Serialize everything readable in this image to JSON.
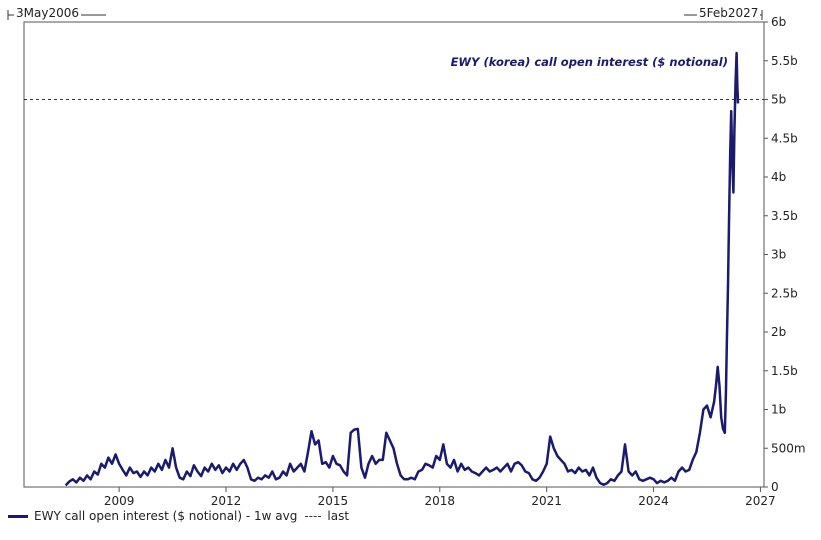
{
  "chart_data": {
    "type": "line",
    "range_start_label": "3May2006",
    "range_end_label": "5Feb2027",
    "annotation": "EWY (korea) call open interest ($ notional)",
    "x_ticks": [
      "2009",
      "2012",
      "2015",
      "2018",
      "2021",
      "2024",
      "2027"
    ],
    "x_tick_values": [
      2009,
      2012,
      2015,
      2018,
      2021,
      2024,
      2027
    ],
    "xlim": [
      2006.33,
      2027.1
    ],
    "y_ticks": [
      "0",
      "500m",
      "1b",
      "1.5b",
      "2b",
      "2.5b",
      "3b",
      "3.5b",
      "4b",
      "4.5b",
      "5b",
      "5.5b",
      "6b"
    ],
    "y_tick_values": [
      0,
      0.5,
      1,
      1.5,
      2,
      2.5,
      3,
      3.5,
      4,
      4.5,
      5,
      5.5,
      6
    ],
    "ylim": [
      0,
      6
    ],
    "y_unit": "billions USD",
    "last_value": 5.0,
    "grid": false,
    "legend_position": "bottom-left",
    "series": [
      {
        "name": "EWY call open interest ($ notional) - 1w avg",
        "color": "#1a1a6e",
        "points": [
          [
            2007.5,
            0.02
          ],
          [
            2007.6,
            0.07
          ],
          [
            2007.7,
            0.1
          ],
          [
            2007.8,
            0.06
          ],
          [
            2007.9,
            0.12
          ],
          [
            2008.0,
            0.08
          ],
          [
            2008.1,
            0.15
          ],
          [
            2008.2,
            0.1
          ],
          [
            2008.3,
            0.2
          ],
          [
            2008.4,
            0.16
          ],
          [
            2008.5,
            0.3
          ],
          [
            2008.6,
            0.25
          ],
          [
            2008.7,
            0.38
          ],
          [
            2008.8,
            0.3
          ],
          [
            2008.9,
            0.42
          ],
          [
            2009.0,
            0.3
          ],
          [
            2009.1,
            0.22
          ],
          [
            2009.2,
            0.15
          ],
          [
            2009.3,
            0.25
          ],
          [
            2009.4,
            0.18
          ],
          [
            2009.5,
            0.2
          ],
          [
            2009.6,
            0.13
          ],
          [
            2009.7,
            0.2
          ],
          [
            2009.8,
            0.15
          ],
          [
            2009.9,
            0.25
          ],
          [
            2010.0,
            0.2
          ],
          [
            2010.1,
            0.3
          ],
          [
            2010.2,
            0.22
          ],
          [
            2010.3,
            0.35
          ],
          [
            2010.4,
            0.25
          ],
          [
            2010.5,
            0.5
          ],
          [
            2010.6,
            0.25
          ],
          [
            2010.7,
            0.12
          ],
          [
            2010.8,
            0.1
          ],
          [
            2010.9,
            0.2
          ],
          [
            2011.0,
            0.14
          ],
          [
            2011.1,
            0.28
          ],
          [
            2011.2,
            0.2
          ],
          [
            2011.3,
            0.14
          ],
          [
            2011.4,
            0.25
          ],
          [
            2011.5,
            0.2
          ],
          [
            2011.6,
            0.3
          ],
          [
            2011.7,
            0.22
          ],
          [
            2011.8,
            0.28
          ],
          [
            2011.9,
            0.18
          ],
          [
            2012.0,
            0.25
          ],
          [
            2012.1,
            0.2
          ],
          [
            2012.2,
            0.3
          ],
          [
            2012.3,
            0.22
          ],
          [
            2012.4,
            0.3
          ],
          [
            2012.5,
            0.35
          ],
          [
            2012.6,
            0.25
          ],
          [
            2012.7,
            0.1
          ],
          [
            2012.8,
            0.08
          ],
          [
            2012.9,
            0.12
          ],
          [
            2013.0,
            0.1
          ],
          [
            2013.1,
            0.15
          ],
          [
            2013.2,
            0.12
          ],
          [
            2013.3,
            0.2
          ],
          [
            2013.4,
            0.1
          ],
          [
            2013.5,
            0.12
          ],
          [
            2013.6,
            0.2
          ],
          [
            2013.7,
            0.15
          ],
          [
            2013.8,
            0.3
          ],
          [
            2013.9,
            0.2
          ],
          [
            2014.0,
            0.25
          ],
          [
            2014.1,
            0.3
          ],
          [
            2014.2,
            0.2
          ],
          [
            2014.3,
            0.45
          ],
          [
            2014.4,
            0.72
          ],
          [
            2014.5,
            0.55
          ],
          [
            2014.6,
            0.6
          ],
          [
            2014.7,
            0.3
          ],
          [
            2014.8,
            0.32
          ],
          [
            2014.9,
            0.25
          ],
          [
            2015.0,
            0.4
          ],
          [
            2015.1,
            0.3
          ],
          [
            2015.2,
            0.28
          ],
          [
            2015.3,
            0.2
          ],
          [
            2015.4,
            0.15
          ],
          [
            2015.5,
            0.7
          ],
          [
            2015.6,
            0.74
          ],
          [
            2015.7,
            0.75
          ],
          [
            2015.8,
            0.25
          ],
          [
            2015.9,
            0.12
          ],
          [
            2016.0,
            0.3
          ],
          [
            2016.1,
            0.4
          ],
          [
            2016.2,
            0.3
          ],
          [
            2016.3,
            0.35
          ],
          [
            2016.4,
            0.35
          ],
          [
            2016.5,
            0.7
          ],
          [
            2016.6,
            0.6
          ],
          [
            2016.7,
            0.5
          ],
          [
            2016.8,
            0.3
          ],
          [
            2016.9,
            0.15
          ],
          [
            2017.0,
            0.1
          ],
          [
            2017.1,
            0.1
          ],
          [
            2017.2,
            0.12
          ],
          [
            2017.3,
            0.1
          ],
          [
            2017.4,
            0.2
          ],
          [
            2017.5,
            0.22
          ],
          [
            2017.6,
            0.3
          ],
          [
            2017.7,
            0.28
          ],
          [
            2017.8,
            0.25
          ],
          [
            2017.9,
            0.4
          ],
          [
            2018.0,
            0.35
          ],
          [
            2018.1,
            0.55
          ],
          [
            2018.2,
            0.3
          ],
          [
            2018.3,
            0.25
          ],
          [
            2018.4,
            0.35
          ],
          [
            2018.5,
            0.2
          ],
          [
            2018.6,
            0.3
          ],
          [
            2018.7,
            0.22
          ],
          [
            2018.8,
            0.25
          ],
          [
            2018.9,
            0.2
          ],
          [
            2019.0,
            0.18
          ],
          [
            2019.1,
            0.15
          ],
          [
            2019.2,
            0.2
          ],
          [
            2019.3,
            0.25
          ],
          [
            2019.4,
            0.2
          ],
          [
            2019.5,
            0.22
          ],
          [
            2019.6,
            0.25
          ],
          [
            2019.7,
            0.2
          ],
          [
            2019.8,
            0.25
          ],
          [
            2019.9,
            0.3
          ],
          [
            2020.0,
            0.2
          ],
          [
            2020.1,
            0.3
          ],
          [
            2020.2,
            0.32
          ],
          [
            2020.3,
            0.28
          ],
          [
            2020.4,
            0.2
          ],
          [
            2020.5,
            0.18
          ],
          [
            2020.6,
            0.1
          ],
          [
            2020.7,
            0.08
          ],
          [
            2020.8,
            0.12
          ],
          [
            2020.9,
            0.2
          ],
          [
            2021.0,
            0.3
          ],
          [
            2021.1,
            0.65
          ],
          [
            2021.2,
            0.5
          ],
          [
            2021.3,
            0.4
          ],
          [
            2021.4,
            0.35
          ],
          [
            2021.5,
            0.3
          ],
          [
            2021.6,
            0.2
          ],
          [
            2021.7,
            0.22
          ],
          [
            2021.8,
            0.18
          ],
          [
            2021.9,
            0.25
          ],
          [
            2022.0,
            0.2
          ],
          [
            2022.1,
            0.22
          ],
          [
            2022.2,
            0.15
          ],
          [
            2022.3,
            0.25
          ],
          [
            2022.4,
            0.12
          ],
          [
            2022.5,
            0.05
          ],
          [
            2022.6,
            0.03
          ],
          [
            2022.7,
            0.05
          ],
          [
            2022.8,
            0.1
          ],
          [
            2022.9,
            0.08
          ],
          [
            2023.0,
            0.15
          ],
          [
            2023.1,
            0.2
          ],
          [
            2023.2,
            0.55
          ],
          [
            2023.3,
            0.2
          ],
          [
            2023.4,
            0.15
          ],
          [
            2023.5,
            0.2
          ],
          [
            2023.6,
            0.1
          ],
          [
            2023.7,
            0.08
          ],
          [
            2023.8,
            0.1
          ],
          [
            2023.9,
            0.12
          ],
          [
            2024.0,
            0.1
          ],
          [
            2024.1,
            0.05
          ],
          [
            2024.2,
            0.08
          ],
          [
            2024.3,
            0.06
          ],
          [
            2024.4,
            0.08
          ],
          [
            2024.5,
            0.12
          ],
          [
            2024.6,
            0.08
          ],
          [
            2024.7,
            0.2
          ],
          [
            2024.8,
            0.25
          ],
          [
            2024.9,
            0.2
          ],
          [
            2025.0,
            0.22
          ],
          [
            2025.1,
            0.35
          ],
          [
            2025.2,
            0.45
          ],
          [
            2025.3,
            0.7
          ],
          [
            2025.4,
            1.0
          ],
          [
            2025.5,
            1.05
          ],
          [
            2025.6,
            0.9
          ],
          [
            2025.7,
            1.1
          ],
          [
            2025.75,
            1.3
          ],
          [
            2025.8,
            1.55
          ],
          [
            2025.85,
            1.3
          ],
          [
            2025.9,
            0.9
          ],
          [
            2025.95,
            0.75
          ],
          [
            2026.0,
            0.7
          ],
          [
            2026.03,
            1.2
          ],
          [
            2026.06,
            1.9
          ],
          [
            2026.09,
            2.6
          ],
          [
            2026.12,
            3.5
          ],
          [
            2026.15,
            4.3
          ],
          [
            2026.18,
            4.85
          ],
          [
            2026.21,
            4.2
          ],
          [
            2026.24,
            3.8
          ],
          [
            2026.27,
            4.6
          ],
          [
            2026.3,
            5.2
          ],
          [
            2026.33,
            5.6
          ],
          [
            2026.35,
            5.2
          ],
          [
            2026.37,
            4.95
          ]
        ]
      },
      {
        "name": "last",
        "style": "dashed",
        "value": 5.0
      }
    ]
  }
}
